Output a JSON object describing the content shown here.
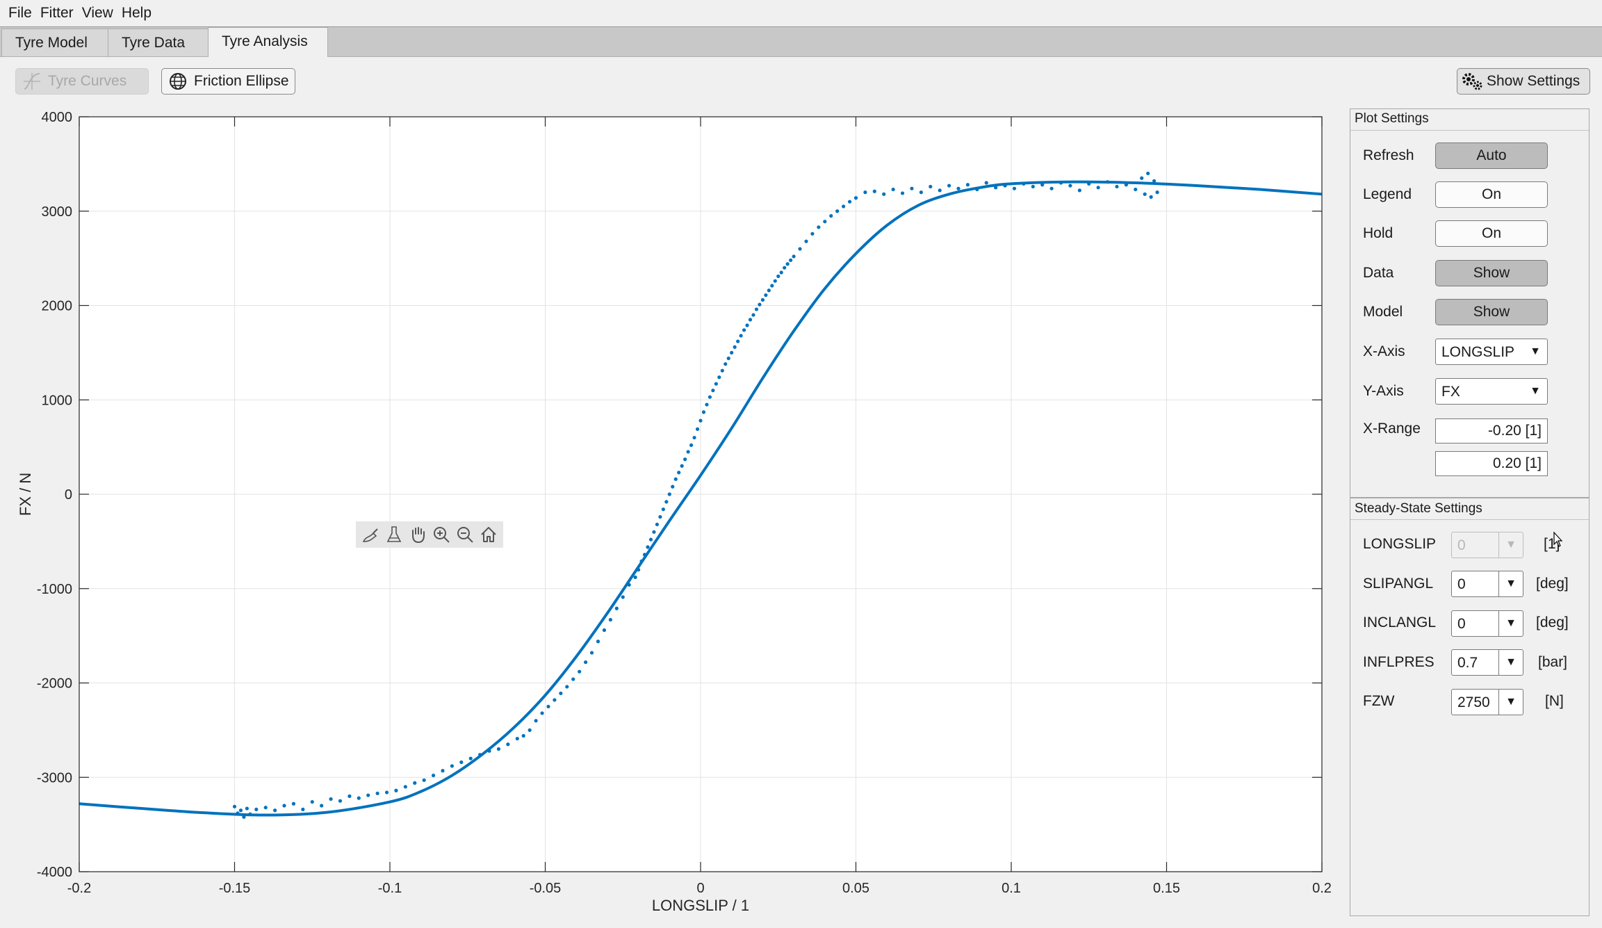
{
  "menu": [
    "File",
    "Fitter",
    "View",
    "Help"
  ],
  "tabs": [
    {
      "label": "Tyre Model",
      "active": false
    },
    {
      "label": "Tyre Data",
      "active": false
    },
    {
      "label": "Tyre Analysis",
      "active": true
    }
  ],
  "toolbar": {
    "tyre_curves": {
      "label": "Tyre Curves",
      "enabled": false,
      "icon": "tyre-curves-icon"
    },
    "friction_ellipse": {
      "label": "Friction Ellipse",
      "icon": "globe-icon"
    },
    "show_settings": {
      "label": "Show Settings",
      "icon": "gears-icon"
    }
  },
  "axes_toolbar": [
    "brush-icon",
    "data-tips-icon",
    "pan-hand-icon",
    "zoom-in-icon",
    "zoom-out-icon",
    "home-icon"
  ],
  "plot_settings": {
    "title": "Plot Settings",
    "rows": [
      {
        "label": "Refresh",
        "value": "Auto",
        "pressed": true
      },
      {
        "label": "Legend",
        "value": "On",
        "pressed": false
      },
      {
        "label": "Hold",
        "value": "On",
        "pressed": false
      },
      {
        "label": "Data",
        "value": "Show",
        "pressed": true
      },
      {
        "label": "Model",
        "value": "Show",
        "pressed": true
      }
    ],
    "x_axis": {
      "label": "X-Axis",
      "value": "LONGSLIP"
    },
    "y_axis": {
      "label": "Y-Axis",
      "value": "FX"
    },
    "x_range": {
      "label": "X-Range",
      "min": "-0.20 [1]",
      "max": "0.20 [1]"
    }
  },
  "steady_state": {
    "title": "Steady-State Settings",
    "rows": [
      {
        "label": "LONGSLIP",
        "value": "0",
        "unit": "[1]",
        "enabled": false
      },
      {
        "label": "SLIPANGL",
        "value": "0",
        "unit": "[deg]",
        "enabled": true
      },
      {
        "label": "INCLANGL",
        "value": "0",
        "unit": "[deg]",
        "enabled": true
      },
      {
        "label": "INFLPRES",
        "value": "0.7",
        "unit": "[bar]",
        "enabled": true
      },
      {
        "label": "FZW",
        "value": "2750",
        "unit": "[N]",
        "enabled": true
      }
    ]
  },
  "colors": {
    "series": "#0072bd",
    "grid": "#e3e3e3",
    "axes_bg": "#ffffff"
  },
  "chart_data": {
    "type": "scatter",
    "xlabel": "LONGSLIP / 1",
    "ylabel": "FX / N",
    "xlim": [
      -0.2,
      0.2
    ],
    "ylim": [
      -4000,
      4000
    ],
    "xticks": [
      -0.2,
      -0.15,
      -0.1,
      -0.05,
      0,
      0.05,
      0.1,
      0.15,
      0.2
    ],
    "xtick_labels": [
      "-0.2",
      "-0.15",
      "-0.1",
      "-0.05",
      "0",
      "0.05",
      "0.1",
      "0.15",
      "0.2"
    ],
    "yticks": [
      -4000,
      -3000,
      -2000,
      -1000,
      0,
      1000,
      2000,
      3000,
      4000
    ],
    "ytick_labels": [
      "-4000",
      "-3000",
      "-2000",
      "-1000",
      "0",
      "1000",
      "2000",
      "3000",
      "4000"
    ],
    "grid": true,
    "series": [
      {
        "kind": "line",
        "x": [
          -0.2,
          -0.18,
          -0.16,
          -0.14,
          -0.12,
          -0.1,
          -0.09,
          -0.08,
          -0.07,
          -0.06,
          -0.05,
          -0.04,
          -0.03,
          -0.02,
          -0.01,
          0,
          0.01,
          0.02,
          0.03,
          0.04,
          0.05,
          0.06,
          0.07,
          0.08,
          0.09,
          0.1,
          0.12,
          0.14,
          0.16,
          0.18,
          0.2
        ],
        "y": [
          -3280,
          -3330,
          -3375,
          -3400,
          -3370,
          -3260,
          -3150,
          -2980,
          -2750,
          -2470,
          -2130,
          -1720,
          -1260,
          -770,
          -280,
          200,
          700,
          1230,
          1730,
          2180,
          2550,
          2850,
          3060,
          3180,
          3250,
          3290,
          3310,
          3300,
          3270,
          3230,
          3180
        ]
      },
      {
        "kind": "scatter",
        "x": [
          -0.15,
          -0.149,
          -0.148,
          -0.147,
          -0.146,
          -0.145,
          -0.143,
          -0.14,
          -0.137,
          -0.134,
          -0.131,
          -0.128,
          -0.125,
          -0.122,
          -0.119,
          -0.116,
          -0.113,
          -0.11,
          -0.107,
          -0.104,
          -0.101,
          -0.098,
          -0.095,
          -0.092,
          -0.089,
          -0.086,
          -0.083,
          -0.08,
          -0.077,
          -0.074,
          -0.071,
          -0.068,
          -0.065,
          -0.062,
          -0.059,
          -0.057,
          -0.055,
          -0.053,
          -0.051,
          -0.049,
          -0.047,
          -0.045,
          -0.043,
          -0.041,
          -0.039,
          -0.037,
          -0.035,
          -0.033,
          -0.031,
          -0.029,
          -0.027,
          -0.025,
          -0.023,
          -0.021,
          -0.02,
          -0.019,
          -0.018,
          -0.017,
          -0.016,
          -0.015,
          -0.014,
          -0.013,
          -0.012,
          -0.011,
          -0.01,
          -0.009,
          -0.008,
          -0.007,
          -0.006,
          -0.005,
          -0.004,
          -0.003,
          -0.002,
          -0.001,
          0,
          0.001,
          0.002,
          0.003,
          0.004,
          0.005,
          0.006,
          0.007,
          0.008,
          0.009,
          0.01,
          0.011,
          0.012,
          0.013,
          0.014,
          0.015,
          0.016,
          0.017,
          0.018,
          0.019,
          0.02,
          0.021,
          0.022,
          0.023,
          0.024,
          0.025,
          0.026,
          0.027,
          0.028,
          0.029,
          0.03,
          0.032,
          0.034,
          0.036,
          0.038,
          0.04,
          0.042,
          0.044,
          0.046,
          0.048,
          0.05,
          0.053,
          0.056,
          0.059,
          0.062,
          0.065,
          0.068,
          0.071,
          0.074,
          0.077,
          0.08,
          0.083,
          0.086,
          0.089,
          0.092,
          0.095,
          0.098,
          0.101,
          0.104,
          0.107,
          0.11,
          0.113,
          0.116,
          0.119,
          0.122,
          0.125,
          0.128,
          0.131,
          0.134,
          0.137,
          0.14,
          0.142,
          0.143,
          0.144,
          0.145,
          0.146,
          0.147
        ],
        "y": [
          -3310,
          -3380,
          -3350,
          -3420,
          -3330,
          -3390,
          -3340,
          -3320,
          -3350,
          -3300,
          -3280,
          -3340,
          -3260,
          -3300,
          -3230,
          -3250,
          -3200,
          -3220,
          -3190,
          -3170,
          -3160,
          -3140,
          -3100,
          -3060,
          -3030,
          -2980,
          -2930,
          -2880,
          -2840,
          -2800,
          -2760,
          -2720,
          -2700,
          -2650,
          -2590,
          -2560,
          -2500,
          -2400,
          -2320,
          -2250,
          -2180,
          -2110,
          -2040,
          -1960,
          -1880,
          -1780,
          -1680,
          -1560,
          -1440,
          -1330,
          -1210,
          -1090,
          -960,
          -880,
          -800,
          -710,
          -640,
          -560,
          -480,
          -400,
          -320,
          -240,
          -160,
          -80,
          0,
          80,
          160,
          230,
          300,
          370,
          450,
          520,
          600,
          690,
          780,
          870,
          950,
          1030,
          1100,
          1170,
          1240,
          1310,
          1380,
          1440,
          1500,
          1560,
          1620,
          1680,
          1740,
          1790,
          1850,
          1900,
          1960,
          2010,
          2060,
          2110,
          2160,
          2210,
          2260,
          2310,
          2350,
          2400,
          2440,
          2480,
          2520,
          2600,
          2680,
          2760,
          2830,
          2890,
          2950,
          3000,
          3050,
          3100,
          3140,
          3200,
          3210,
          3180,
          3230,
          3190,
          3240,
          3200,
          3260,
          3220,
          3270,
          3240,
          3280,
          3230,
          3300,
          3250,
          3270,
          3240,
          3290,
          3260,
          3280,
          3240,
          3300,
          3270,
          3220,
          3290,
          3250,
          3310,
          3260,
          3280,
          3230,
          3350,
          3180,
          3400,
          3150,
          3320,
          3200
        ]
      }
    ]
  }
}
